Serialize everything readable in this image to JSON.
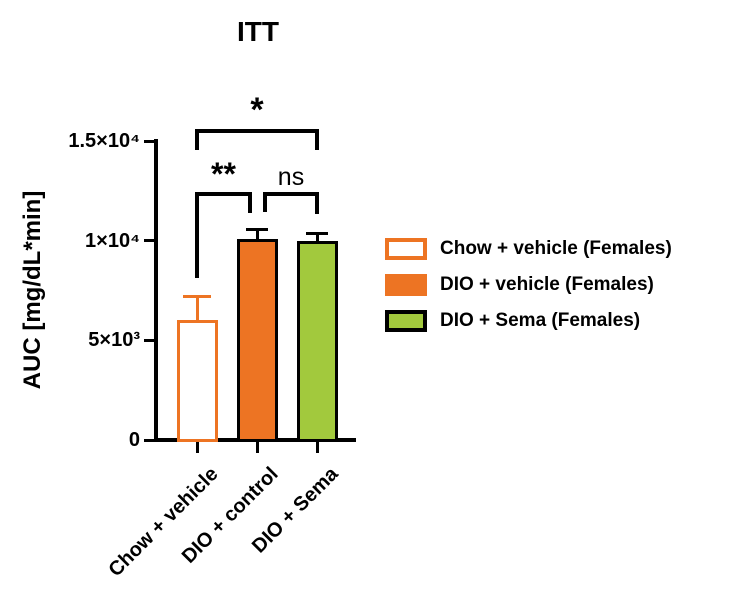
{
  "title": "ITT",
  "colors": {
    "orange": "#ED7423",
    "green": "#A2C93D",
    "axis_black": "#000000",
    "background": "#FFFFFF"
  },
  "chart_data": {
    "type": "bar",
    "title": "ITT",
    "ylabel": "AUC [mg/dL*min]",
    "xlabel": "",
    "categories": [
      "Chow + vehicle",
      "DIO + control",
      "DIO + Sema"
    ],
    "series": [
      {
        "name": "Chow + vehicle (Females)",
        "category": "Chow + vehicle",
        "value": 6000,
        "error": 1200,
        "fill": "#FFFFFF",
        "outline": "#ED7423",
        "error_color": "#ED7423"
      },
      {
        "name": "DIO + vehicle (Females)",
        "category": "DIO + control",
        "value": 10100,
        "error": 450,
        "fill": "#ED7423",
        "outline": "#000000",
        "error_color": "#000000"
      },
      {
        "name": "DIO + Sema (Females)",
        "category": "DIO + Sema",
        "value": 10000,
        "error": 350,
        "fill": "#A2C93D",
        "outline": "#000000",
        "error_color": "#000000"
      }
    ],
    "error_style": "SEM upper-only",
    "ylim": [
      0,
      15000
    ],
    "yticks": [
      {
        "value": 0,
        "label": "0"
      },
      {
        "value": 5000,
        "label": "5×10³"
      },
      {
        "value": 10000,
        "label": "1×10⁴"
      },
      {
        "value": 15000,
        "label": "1.5×10⁴"
      }
    ],
    "grid": false,
    "legend_position": "right",
    "comparisons": [
      {
        "a": 0,
        "b": 1,
        "label": "**",
        "y": 192,
        "arm_a": 86,
        "arm_b": 21,
        "shift_a": 0,
        "shift_b": -7,
        "size": 32,
        "weight": "bold"
      },
      {
        "a": 1,
        "b": 2,
        "label": "ns",
        "y": 192,
        "arm_a": 20,
        "arm_b": 22,
        "shift_a": 8,
        "shift_b": 0,
        "size": 25,
        "weight": "normal"
      },
      {
        "a": 0,
        "b": 2,
        "label": "*",
        "y": 129,
        "arm_a": 21,
        "arm_b": 21,
        "shift_a": 0,
        "shift_b": 0,
        "size": 34,
        "weight": "bold"
      }
    ]
  },
  "legend": {
    "items": [
      {
        "label": "Chow + vehicle (Females)",
        "fill": "#FFFFFF",
        "border": "#ED7423"
      },
      {
        "label": "DIO + vehicle (Females)",
        "fill": "#ED7423",
        "border": "#ED7423"
      },
      {
        "label": "DIO + Sema (Females)",
        "fill": "#A2C93D",
        "border": "#000000"
      }
    ]
  }
}
